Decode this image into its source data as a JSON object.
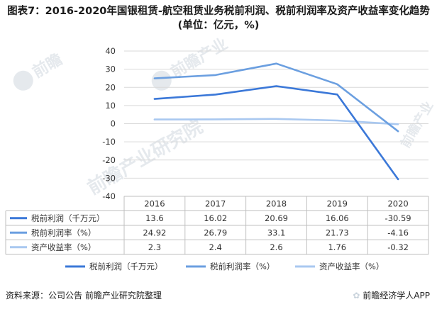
{
  "title": "图表7：2016-2020年国银租赁-航空租赁业务税前利润、税前利润率及资产收益率变化趋势(单位：亿元，%)",
  "footer": {
    "source": "资料来源：公司公告 前瞻产业研究院整理",
    "brand": "前瞻经济学人APP",
    "brand_icon": "paw-logo-icon"
  },
  "colors": {
    "profit": "#3b78d8",
    "margin": "#6b9fe0",
    "roa": "#a9c8f0",
    "grid": "#d9d9d9",
    "table_border": "#bfbfbf"
  },
  "chart_data": {
    "type": "line",
    "title": "",
    "xlabel": "",
    "ylabel": "",
    "categories": [
      "2016",
      "2017",
      "2018",
      "2019",
      "2020"
    ],
    "ylim": [
      -40,
      40
    ],
    "yticks": [
      40,
      30,
      20,
      10,
      0,
      -10,
      -20,
      -30,
      -40
    ],
    "series": [
      {
        "name": "税前利润（千万元）",
        "values": [
          13.6,
          16.02,
          20.69,
          16.06,
          -30.59
        ],
        "labels": [
          "13.6",
          "16.02",
          "20.69",
          "16.06",
          "-30.59"
        ],
        "color": "#3b78d8"
      },
      {
        "name": "税前利润率（%）",
        "values": [
          24.92,
          26.79,
          33.1,
          21.73,
          -4.16
        ],
        "labels": [
          "24.92",
          "26.79",
          "33.1",
          "21.73",
          "-4.16"
        ],
        "color": "#6b9fe0"
      },
      {
        "name": "资产收益率（%）",
        "values": [
          2.3,
          2.4,
          2.6,
          1.76,
          -0.32
        ],
        "labels": [
          "2.3",
          "2.4",
          "2.6",
          "1.76",
          "-0.32"
        ],
        "color": "#a9c8f0"
      }
    ],
    "data_table": true,
    "legend_position": "bottom"
  }
}
